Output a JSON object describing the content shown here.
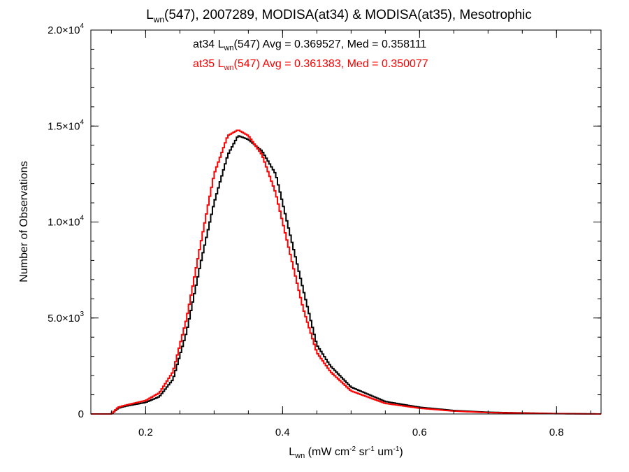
{
  "chart_data": {
    "type": "line",
    "title": {
      "pre": "L",
      "sub": "wn",
      "post": "(547), 2007289, MODISA(at34) & MODISA(at35), Mesotrophic"
    },
    "xlabel": {
      "pre": "L",
      "sub": "wn",
      "post1": " (mW cm",
      "sup1": "-2",
      "post2": " sr",
      "sup2": "-1",
      "post3": " um",
      "sup3": "-1",
      "post4": ")"
    },
    "ylabel": "Number of Observations",
    "xlim": [
      0.12,
      0.865
    ],
    "ylim": [
      0,
      20000
    ],
    "x_ticks": [
      {
        "value": 0.2,
        "label": "0.2"
      },
      {
        "value": 0.4,
        "label": "0.4"
      },
      {
        "value": 0.6,
        "label": "0.6"
      },
      {
        "value": 0.8,
        "label": "0.8"
      }
    ],
    "y_ticks": [
      {
        "value": 0,
        "mant": "0",
        "exp": ""
      },
      {
        "value": 5000,
        "mant": "5.0×10",
        "exp": "3"
      },
      {
        "value": 10000,
        "mant": "1.0×10",
        "exp": "4"
      },
      {
        "value": 15000,
        "mant": "1.5×10",
        "exp": "4"
      },
      {
        "value": 20000,
        "mant": "2.0×10",
        "exp": "4"
      }
    ],
    "x_minor_step": 0.05,
    "y_minor_step": 1000,
    "series": [
      {
        "color": "#000000",
        "x": [
          0.12,
          0.15,
          0.16,
          0.17,
          0.2,
          0.22,
          0.24,
          0.26,
          0.28,
          0.3,
          0.32,
          0.335,
          0.35,
          0.37,
          0.39,
          0.41,
          0.43,
          0.45,
          0.47,
          0.5,
          0.55,
          0.6,
          0.65,
          0.7,
          0.8,
          0.865
        ],
        "y": [
          0,
          0,
          300,
          400,
          600,
          900,
          1800,
          4300,
          7800,
          11000,
          13500,
          14500,
          14300,
          13700,
          12500,
          9500,
          6500,
          3600,
          2500,
          1400,
          650,
          350,
          180,
          90,
          20,
          0
        ]
      },
      {
        "color": "#ff0000",
        "x": [
          0.12,
          0.15,
          0.16,
          0.17,
          0.2,
          0.22,
          0.24,
          0.26,
          0.28,
          0.3,
          0.32,
          0.335,
          0.35,
          0.37,
          0.39,
          0.41,
          0.43,
          0.45,
          0.47,
          0.5,
          0.55,
          0.6,
          0.65,
          0.7,
          0.8,
          0.865
        ],
        "y": [
          0,
          0,
          350,
          450,
          700,
          1100,
          2200,
          5000,
          8800,
          12500,
          14500,
          14800,
          14500,
          13500,
          11500,
          8500,
          5500,
          3200,
          2200,
          1200,
          550,
          300,
          150,
          70,
          15,
          0
        ]
      }
    ],
    "annotations": [
      {
        "color": "#000000",
        "pre": "at34 L",
        "sub": "wn",
        "post": "(547) Avg = 0.369527, Med = 0.358111"
      },
      {
        "color": "#ff0000",
        "pre": "at35 L",
        "sub": "wn",
        "post": "(547) Avg = 0.361383, Med = 0.350077"
      }
    ],
    "grid": false,
    "legend": "none"
  }
}
